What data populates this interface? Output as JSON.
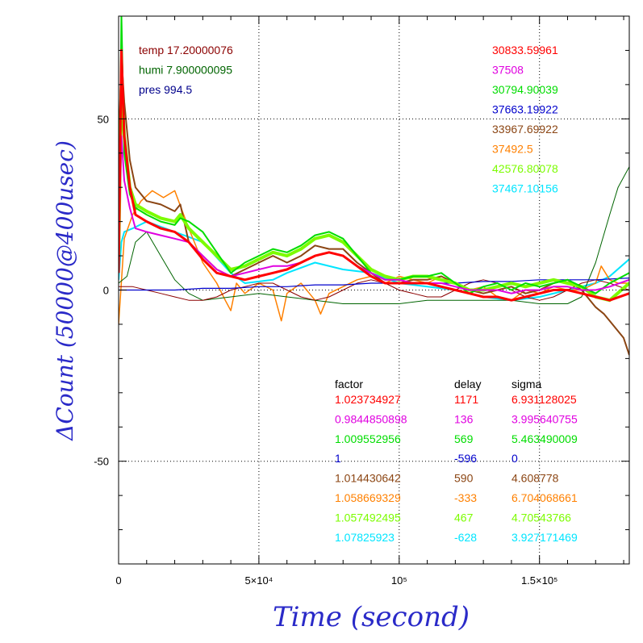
{
  "chart_data": {
    "type": "line",
    "xlabel": "Time (second)",
    "ylabel": "ΔCount (50000@400usec)",
    "xlim": [
      0,
      182000
    ],
    "ylim": [
      -80,
      80
    ],
    "x_ticks": [
      {
        "value": 0,
        "label": "0"
      },
      {
        "value": 50000,
        "label": "5×10⁴"
      },
      {
        "value": 100000,
        "label": "10⁵"
      },
      {
        "value": 150000,
        "label": "1.5×10⁵"
      }
    ],
    "y_ticks": [
      {
        "value": -50,
        "label": "-50"
      },
      {
        "value": 0,
        "label": "0"
      },
      {
        "value": 50,
        "label": "50"
      }
    ],
    "grid": "dotted at major ticks",
    "env_text": [
      {
        "text": "temp 17.20000076",
        "color": "#8b0000"
      },
      {
        "text": "humi 7.900000095",
        "color": "#006400"
      },
      {
        "text": "pres 994.5",
        "color": "#00008b"
      }
    ],
    "offset_values": [
      {
        "text": "30833.59961",
        "color": "#ff0000"
      },
      {
        "text": "37508",
        "color": "#e000e0"
      },
      {
        "text": "30794.90039",
        "color": "#00dd00"
      },
      {
        "text": "37663.19922",
        "color": "#0000cc"
      },
      {
        "text": "33967.69922",
        "color": "#8b4513"
      },
      {
        "text": "37492.5",
        "color": "#ff8000"
      },
      {
        "text": "42576.80078",
        "color": "#7cfc00"
      },
      {
        "text": "37467.10156",
        "color": "#00e5ff"
      }
    ],
    "table": {
      "headers": [
        "factor",
        "delay",
        "sigma"
      ],
      "rows": [
        {
          "color": "#ff0000",
          "factor": "1.023734927",
          "delay": "1171",
          "sigma": "6.931128025"
        },
        {
          "color": "#e000e0",
          "factor": "0.9844850898",
          "delay": "136",
          "sigma": "3.995640755"
        },
        {
          "color": "#00dd00",
          "factor": "1.009552956",
          "delay": "569",
          "sigma": "5.463490009"
        },
        {
          "color": "#0000cc",
          "factor": "1",
          "delay": "-596",
          "sigma": "0"
        },
        {
          "color": "#8b4513",
          "factor": "1.014430642",
          "delay": "590",
          "sigma": "4.608778"
        },
        {
          "color": "#ff8000",
          "factor": "1.058669329",
          "delay": "-333",
          "sigma": "6.704068661"
        },
        {
          "color": "#7cfc00",
          "factor": "1.057492495",
          "delay": "467",
          "sigma": "4.70543766"
        },
        {
          "color": "#00e5ff",
          "factor": "1.07825923",
          "delay": "-628",
          "sigma": "3.927171469"
        }
      ]
    },
    "series": [
      {
        "color": "#00e5ff",
        "width": 2,
        "x": [
          0,
          1000,
          2000,
          5000,
          10000,
          20000,
          30000,
          40000,
          45000,
          55000,
          60000,
          70000,
          80000,
          90000,
          100000,
          110000,
          120000,
          130000,
          140000,
          150000,
          160000,
          170000,
          175000,
          182000
        ],
        "y": [
          3,
          14,
          17,
          18,
          20,
          17,
          14,
          5,
          2,
          3,
          5,
          8,
          6,
          5,
          2,
          1,
          0,
          -2,
          -3,
          -2,
          0,
          2,
          4,
          9
        ]
      },
      {
        "color": "#ff8000",
        "width": 1.5,
        "x": [
          0,
          2000,
          5000,
          8000,
          12000,
          16000,
          20000,
          25000,
          30000,
          35000,
          38000,
          40000,
          42000,
          45000,
          50000,
          55000,
          58000,
          60000,
          65000,
          70000,
          72000,
          75000,
          80000,
          85000,
          90000,
          95000,
          100000,
          105000,
          110000,
          115000,
          120000,
          125000,
          130000,
          135000,
          140000,
          145000,
          150000,
          155000,
          160000,
          165000,
          170000,
          172000,
          175000,
          178000,
          182000
        ],
        "y": [
          -10,
          15,
          22,
          26,
          29,
          27,
          29,
          18,
          8,
          2,
          -3,
          -6,
          2,
          -1,
          2,
          0,
          -9,
          -1,
          2,
          -3,
          -7,
          -1,
          1,
          3,
          4,
          2,
          4,
          3,
          2,
          4,
          2,
          0,
          1,
          -2,
          -3,
          0,
          -1,
          1,
          0,
          0,
          2,
          7,
          3,
          2,
          2
        ]
      },
      {
        "color": "#006400",
        "width": 1,
        "x": [
          0,
          3000,
          6000,
          10000,
          15000,
          20000,
          25000,
          30000,
          40000,
          50000,
          60000,
          70000,
          80000,
          90000,
          100000,
          110000,
          120000,
          130000,
          140000,
          150000,
          160000,
          165000,
          170000,
          175000,
          178000,
          182000
        ],
        "y": [
          2,
          4,
          14,
          17,
          10,
          3,
          -1,
          -3,
          -2,
          -1,
          -2,
          -3,
          -4,
          -4,
          -4,
          -3,
          -3,
          -3,
          -3,
          -4,
          -4,
          -2,
          8,
          22,
          30,
          36
        ]
      },
      {
        "color": "#8b0000",
        "width": 1,
        "x": [
          0,
          5000,
          10000,
          15000,
          20000,
          25000,
          30000,
          35000,
          40000,
          45000,
          50000,
          55000,
          60000,
          65000,
          70000,
          75000,
          80000,
          85000,
          90000,
          95000,
          100000,
          105000,
          110000,
          115000,
          120000,
          125000,
          130000,
          135000,
          140000,
          145000,
          150000,
          155000,
          160000,
          165000,
          170000,
          175000,
          182000
        ],
        "y": [
          1,
          1,
          0,
          -1,
          -2,
          -3,
          -3,
          -2,
          0,
          1,
          2,
          2,
          0,
          -2,
          -3,
          -2,
          0,
          2,
          3,
          2,
          0,
          -1,
          -2,
          -2,
          0,
          2,
          3,
          2,
          0,
          -2,
          -3,
          -2,
          0,
          2,
          3,
          2,
          0
        ]
      },
      {
        "color": "#0000cc",
        "width": 1.2,
        "x": [
          0,
          10000,
          20000,
          30000,
          40000,
          50000,
          60000,
          70000,
          80000,
          90000,
          100000,
          110000,
          120000,
          130000,
          140000,
          150000,
          160000,
          170000,
          182000
        ],
        "y": [
          0,
          0,
          0,
          0.5,
          0.5,
          1,
          1,
          1.5,
          1.5,
          2,
          2,
          2,
          2,
          2.5,
          2.5,
          3,
          3,
          3,
          3.5
        ]
      },
      {
        "color": "#8b4513",
        "width": 2,
        "x": [
          0,
          1000,
          2000,
          4000,
          6000,
          10000,
          15000,
          20000,
          22000,
          25000,
          30000,
          35000,
          40000,
          45000,
          50000,
          55000,
          60000,
          65000,
          70000,
          75000,
          80000,
          85000,
          90000,
          95000,
          100000,
          105000,
          110000,
          115000,
          120000,
          125000,
          130000,
          135000,
          140000,
          145000,
          150000,
          155000,
          160000,
          165000,
          170000,
          173000,
          176000,
          180000,
          182000
        ],
        "y": [
          40,
          68,
          55,
          38,
          30,
          26,
          25,
          23,
          25,
          14,
          10,
          6,
          4,
          6,
          8,
          10,
          8,
          10,
          13,
          12,
          12,
          8,
          5,
          2,
          2,
          3,
          3,
          4,
          2,
          0,
          -1,
          0,
          1,
          -1,
          0,
          2,
          3,
          0,
          -5,
          -7,
          -10,
          -14,
          -19
        ]
      },
      {
        "color": "#7cfc00",
        "width": 4,
        "x": [
          0,
          1000,
          2000,
          4000,
          6000,
          10000,
          15000,
          20000,
          22000,
          25000,
          30000,
          35000,
          40000,
          45000,
          50000,
          55000,
          60000,
          65000,
          70000,
          75000,
          80000,
          85000,
          90000,
          95000,
          100000,
          105000,
          110000,
          115000,
          120000,
          125000,
          130000,
          135000,
          140000,
          145000,
          150000,
          155000,
          160000,
          165000,
          170000,
          175000,
          182000
        ],
        "y": [
          10,
          60,
          45,
          30,
          25,
          23,
          21,
          20,
          22,
          18,
          14,
          10,
          6,
          7,
          9,
          11,
          10,
          12,
          15,
          16,
          14,
          10,
          6,
          4,
          3,
          4,
          4,
          3,
          2,
          0,
          0,
          1,
          2,
          1,
          2,
          3,
          2,
          1,
          -2,
          -3,
          2
        ]
      },
      {
        "color": "#00dd00",
        "width": 2,
        "x": [
          0,
          1000,
          2000,
          4000,
          6000,
          10000,
          15000,
          20000,
          22000,
          25000,
          30000,
          35000,
          40000,
          45000,
          50000,
          55000,
          60000,
          65000,
          70000,
          75000,
          80000,
          85000,
          90000,
          95000,
          100000,
          105000,
          110000,
          115000,
          120000,
          125000,
          130000,
          135000,
          140000,
          145000,
          150000,
          155000,
          160000,
          165000,
          170000,
          175000,
          182000
        ],
        "y": [
          8,
          80,
          40,
          28,
          24,
          22,
          20,
          19,
          21,
          20,
          17,
          11,
          5,
          8,
          10,
          12,
          11,
          13,
          16,
          17,
          15,
          10,
          5,
          3,
          3,
          4,
          4,
          5,
          2,
          -1,
          1,
          2,
          0,
          2,
          1,
          2,
          3,
          1,
          -1,
          2,
          5
        ]
      },
      {
        "color": "#e000e0",
        "width": 2,
        "x": [
          0,
          1000,
          2000,
          4000,
          6000,
          10000,
          15000,
          20000,
          25000,
          30000,
          35000,
          40000,
          45000,
          50000,
          55000,
          60000,
          65000,
          70000,
          75000,
          80000,
          85000,
          90000,
          95000,
          100000,
          105000,
          110000,
          115000,
          120000,
          125000,
          130000,
          135000,
          140000,
          145000,
          150000,
          155000,
          160000,
          165000,
          170000,
          175000,
          182000
        ],
        "y": [
          10,
          45,
          32,
          24,
          18,
          17,
          16,
          15,
          14,
          10,
          6,
          4,
          5,
          6,
          7,
          7,
          8,
          10,
          11,
          10,
          7,
          5,
          3,
          3,
          2,
          2,
          2,
          1,
          0,
          0,
          0,
          -1,
          0,
          0,
          1,
          1,
          0,
          0,
          1,
          3
        ]
      },
      {
        "color": "#ff0000",
        "width": 3,
        "x": [
          0,
          1000,
          2000,
          4000,
          6000,
          10000,
          15000,
          20000,
          25000,
          30000,
          35000,
          40000,
          45000,
          50000,
          55000,
          60000,
          65000,
          70000,
          75000,
          80000,
          85000,
          90000,
          95000,
          100000,
          105000,
          110000,
          115000,
          120000,
          125000,
          130000,
          135000,
          140000,
          145000,
          150000,
          155000,
          160000,
          165000,
          170000,
          175000,
          182000
        ],
        "y": [
          5,
          70,
          45,
          30,
          22,
          20,
          18,
          17,
          14,
          9,
          5,
          4,
          3,
          4,
          5,
          6,
          8,
          10,
          11,
          10,
          7,
          4,
          2,
          2,
          2,
          2,
          1,
          0,
          -1,
          -2,
          -2,
          -3,
          -2,
          -1,
          0,
          0,
          -1,
          -2,
          -3,
          -1
        ]
      }
    ]
  }
}
